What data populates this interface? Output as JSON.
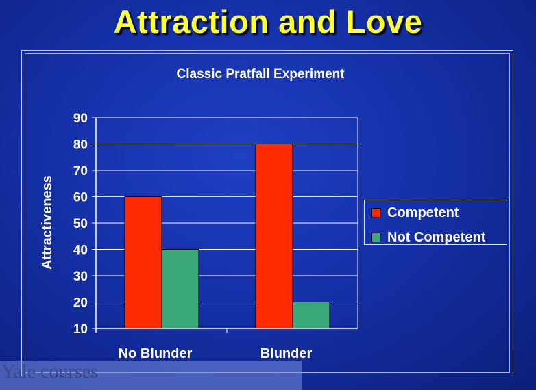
{
  "slide": {
    "title": "Attraction and Love",
    "watermark": "Yale courses"
  },
  "colors": {
    "title": "#ffff33",
    "competent": "#ff2a00",
    "not_competent": "#3aa878",
    "grid": "#ffffff"
  },
  "chart_data": {
    "type": "bar",
    "title": "Classic Pratfall Experiment",
    "xlabel": "",
    "ylabel": "Attractiveness",
    "categories": [
      "No Blunder",
      "Blunder"
    ],
    "series": [
      {
        "name": "Competent",
        "values": [
          60,
          80
        ]
      },
      {
        "name": "Not Competent",
        "values": [
          40,
          20
        ]
      }
    ],
    "ylim": [
      10,
      90
    ],
    "yticks": [
      10,
      20,
      30,
      40,
      50,
      60,
      70,
      80,
      90
    ],
    "grid": true,
    "legend": "right"
  }
}
